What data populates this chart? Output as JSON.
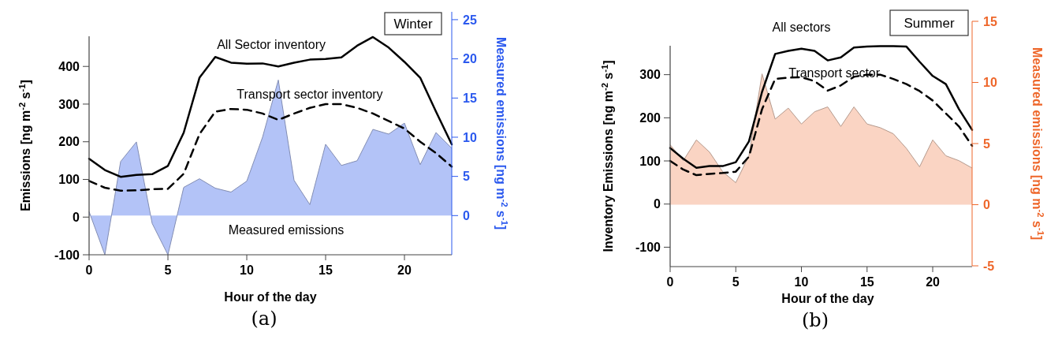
{
  "chart_data": [
    {
      "type": "line",
      "xlabel": "Hour of the day",
      "ylabel": "Emissions [ng m$^{-2}$ s$^{-1}$]",
      "y2label": "Measured emissions [ng m$^{-2}$ s$^{-1}$]",
      "annotations": [
        "Winter",
        "(a)"
      ],
      "x": [
        0,
        1,
        2,
        3,
        4,
        5,
        6,
        7,
        8,
        9,
        10,
        11,
        12,
        13,
        14,
        15,
        16,
        17,
        18,
        19,
        20,
        21,
        22,
        23
      ],
      "xlim": [
        0,
        23
      ],
      "xticks": [
        0,
        5,
        10,
        15,
        20
      ],
      "ylim": [
        -100,
        480
      ],
      "yticks": [
        -100,
        0,
        100,
        200,
        300,
        400
      ],
      "y2lim": [
        -5,
        26
      ],
      "y2ticks": [
        0,
        5,
        10,
        15,
        20,
        25
      ],
      "series": [
        {
          "type": "area",
          "name": "Measured emissions",
          "axis": "y2",
          "color": "#b3c3f7",
          "values": [
            0.5,
            -5,
            6.9,
            9.4,
            -1,
            -5,
            3.6,
            4.7,
            3.5,
            3,
            4.4,
            10,
            17.3,
            4.5,
            1.4,
            9.1,
            6.4,
            7,
            11,
            10.4,
            11.8,
            6.5,
            10.6,
            8.6
          ]
        },
        {
          "name": "All Sector inventory",
          "color": "#000000",
          "line_style": "solid",
          "values": [
            155,
            125,
            107,
            112,
            114,
            136,
            224,
            370,
            425,
            410,
            407,
            408,
            400,
            410,
            418,
            420,
            424,
            455,
            478,
            450,
            412,
            370,
            280,
            193
          ]
        },
        {
          "name": "Transport sector inventory",
          "color": "#000000",
          "line_style": "dashed",
          "values": [
            96,
            78,
            70,
            71,
            74,
            75,
            115,
            220,
            280,
            287,
            285,
            275,
            258,
            275,
            290,
            300,
            300,
            290,
            275,
            255,
            235,
            200,
            170,
            134
          ]
        }
      ]
    },
    {
      "type": "line",
      "xlabel": "Hour of the day",
      "ylabel": "Inventory Emissions [ng m$^{-2}$ s$^{-1}$]",
      "y2label": "Measured emissions [ng m$^{-2}$ s$^{-1}$]",
      "annotations": [
        "Summer",
        "(b)"
      ],
      "x": [
        0,
        1,
        2,
        3,
        4,
        5,
        6,
        7,
        8,
        9,
        10,
        11,
        12,
        13,
        14,
        15,
        16,
        17,
        18,
        19,
        20,
        21,
        22,
        23
      ],
      "xlim": [
        0,
        23
      ],
      "xticks": [
        0,
        5,
        10,
        15,
        20
      ],
      "ylim": [
        -145,
        367
      ],
      "yticks": [
        -100,
        0,
        100,
        200,
        300
      ],
      "y2lim": [
        -5,
        15
      ],
      "y2ticks": [
        -5,
        0,
        5,
        10,
        15
      ],
      "series": [
        {
          "type": "area",
          "axis": "y2",
          "color": "#fad4c3",
          "values": [
            4.9,
            3.6,
            5.3,
            4.3,
            2.7,
            1.8,
            4,
            10.7,
            7,
            7.9,
            6.6,
            7.6,
            8,
            6.4,
            8,
            6.6,
            6.3,
            5.8,
            4.6,
            3.1,
            5.3,
            4,
            3.6,
            3
          ]
        },
        {
          "name": "All sectors",
          "color": "#000000",
          "line_style": "solid",
          "values": [
            130,
            105,
            84,
            88,
            88,
            97,
            145,
            260,
            348,
            355,
            360,
            355,
            333,
            340,
            363,
            365,
            366,
            366,
            365,
            330,
            297,
            278,
            220,
            172
          ]
        },
        {
          "name": "Transport sector",
          "color": "#000000",
          "line_style": "dashed",
          "values": [
            100,
            80,
            67,
            70,
            72,
            75,
            110,
            220,
            290,
            293,
            294,
            285,
            263,
            275,
            295,
            300,
            300,
            290,
            278,
            262,
            240,
            210,
            180,
            135
          ]
        }
      ]
    }
  ]
}
